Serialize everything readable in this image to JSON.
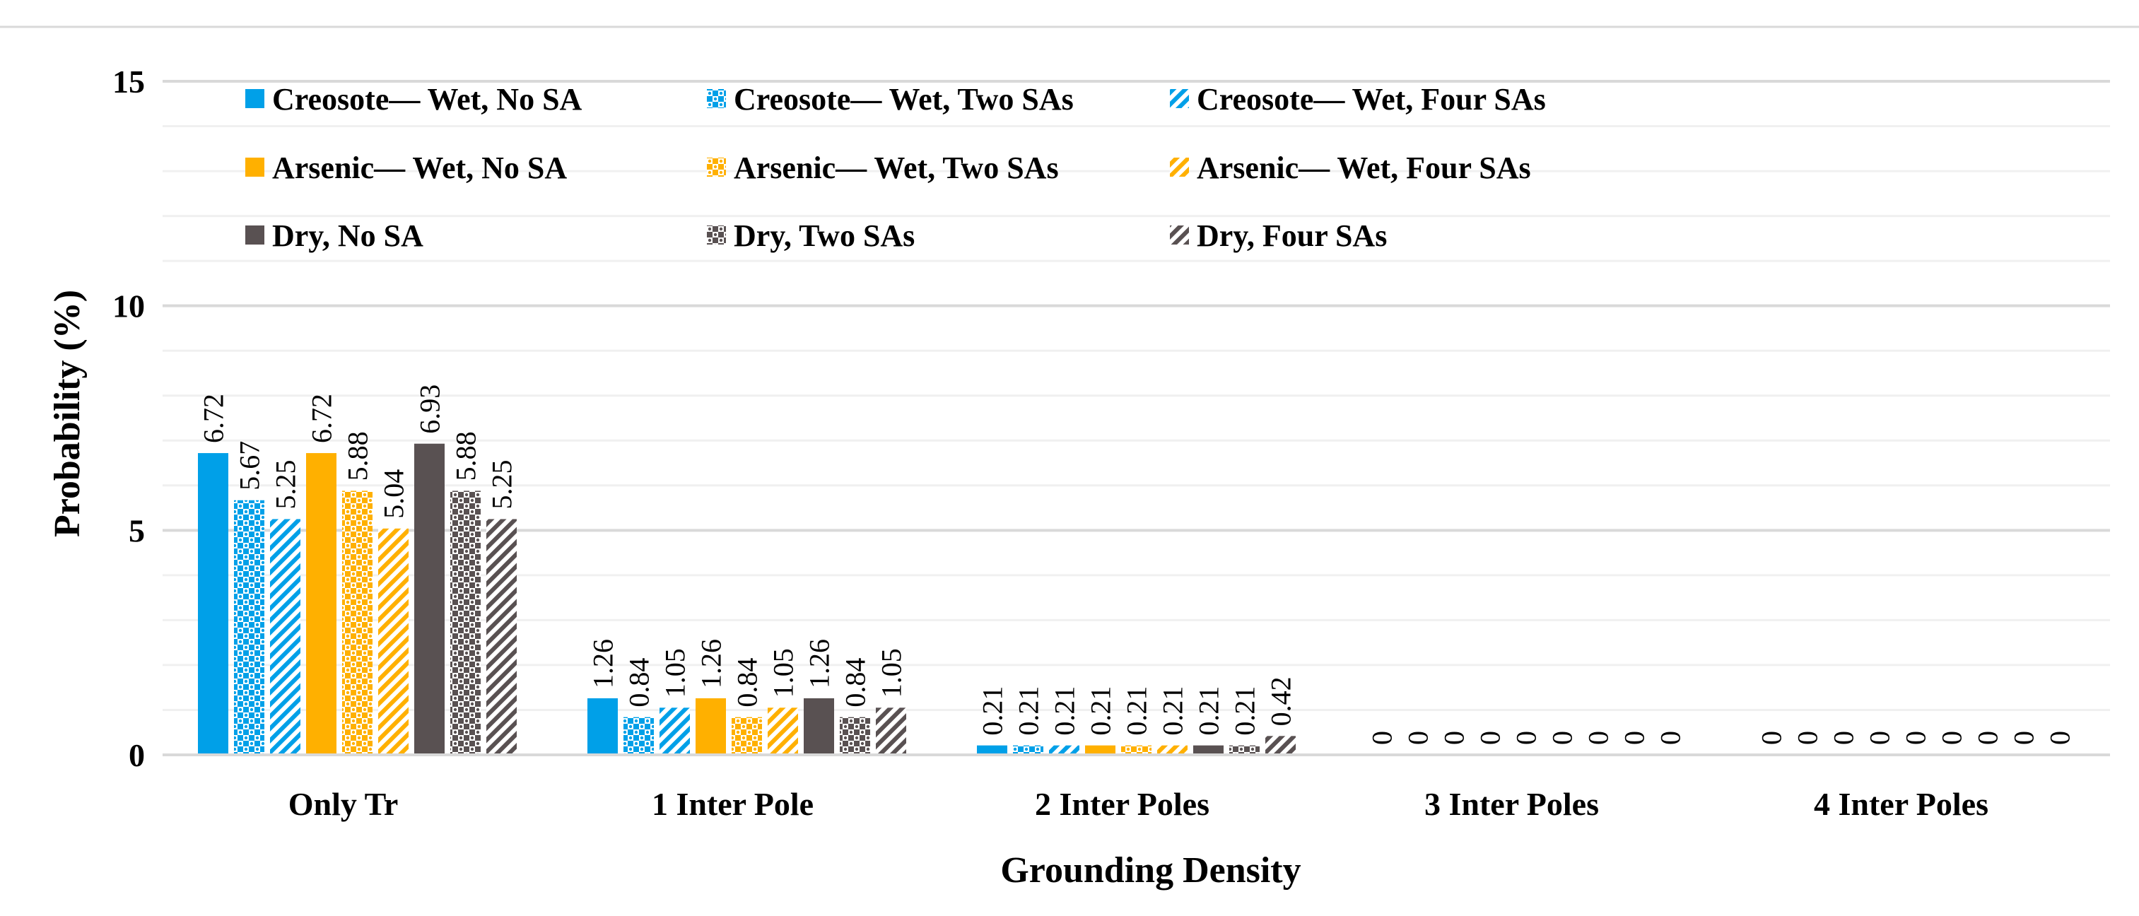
{
  "chart_data": {
    "type": "bar",
    "xlabel": "Grounding Density",
    "ylabel": "Probability (%)",
    "ylim": [
      0,
      15
    ],
    "yticks": [
      0,
      5,
      10,
      15
    ],
    "minor_gridlines_step": 1,
    "grid": true,
    "legend_position": "top-left",
    "categories": [
      "Only Tr",
      "1 Inter Pole",
      "2 Inter Poles",
      "3 Inter Poles",
      "4 Inter Poles"
    ],
    "series": [
      {
        "name": "Creosote— Wet, No SA",
        "color": "#00a0e8",
        "pattern": "solid",
        "values": [
          6.72,
          1.26,
          0.21,
          0,
          0
        ],
        "labels": [
          "6.72",
          "1.26",
          "0.21",
          "0",
          "0"
        ]
      },
      {
        "name": "Creosote— Wet, Two SAs",
        "color": "#00a0e8",
        "pattern": "checker",
        "values": [
          5.67,
          0.84,
          0.21,
          0,
          0
        ],
        "labels": [
          "5.67",
          "0.84",
          "0.21",
          "0",
          "0"
        ]
      },
      {
        "name": "Creosote— Wet, Four SAs",
        "color": "#00a0e8",
        "pattern": "diagonal",
        "values": [
          5.25,
          1.05,
          0.21,
          0,
          0
        ],
        "labels": [
          "5.25",
          "1.05",
          "0.21",
          "0",
          "0"
        ]
      },
      {
        "name": "Arsenic— Wet, No SA",
        "color": "#ffb000",
        "pattern": "solid",
        "values": [
          6.72,
          1.26,
          0.21,
          0,
          0
        ],
        "labels": [
          "6.72",
          "1.26",
          "0.21",
          "0",
          "0"
        ]
      },
      {
        "name": "Arsenic— Wet, Two SAs",
        "color": "#ffb000",
        "pattern": "checker",
        "values": [
          5.88,
          0.84,
          0.21,
          0,
          0
        ],
        "labels": [
          "5.88",
          "0.84",
          "0.21",
          "0",
          "0"
        ]
      },
      {
        "name": "Arsenic— Wet, Four SAs",
        "color": "#ffb000",
        "pattern": "diagonal",
        "values": [
          5.04,
          1.05,
          0.21,
          0,
          0
        ],
        "labels": [
          "5.04",
          "1.05",
          "0.21",
          "0",
          "0"
        ]
      },
      {
        "name": "Dry, No SA",
        "color": "#595152",
        "pattern": "solid",
        "values": [
          6.93,
          1.26,
          0.21,
          0,
          0
        ],
        "labels": [
          "6.93",
          "1.26",
          "0.21",
          "0",
          "0"
        ]
      },
      {
        "name": "Dry, Two SAs",
        "color": "#595152",
        "pattern": "checker",
        "values": [
          5.88,
          0.84,
          0.21,
          0,
          0
        ],
        "labels": [
          "5.88",
          "0.84",
          "0.21",
          "0",
          "0"
        ]
      },
      {
        "name": "Dry, Four SAs",
        "color": "#595152",
        "pattern": "diagonal",
        "values": [
          5.25,
          1.05,
          0.42,
          0,
          0
        ],
        "labels": [
          "5.25",
          "1.05",
          "0.42",
          "0",
          "0"
        ]
      }
    ]
  }
}
